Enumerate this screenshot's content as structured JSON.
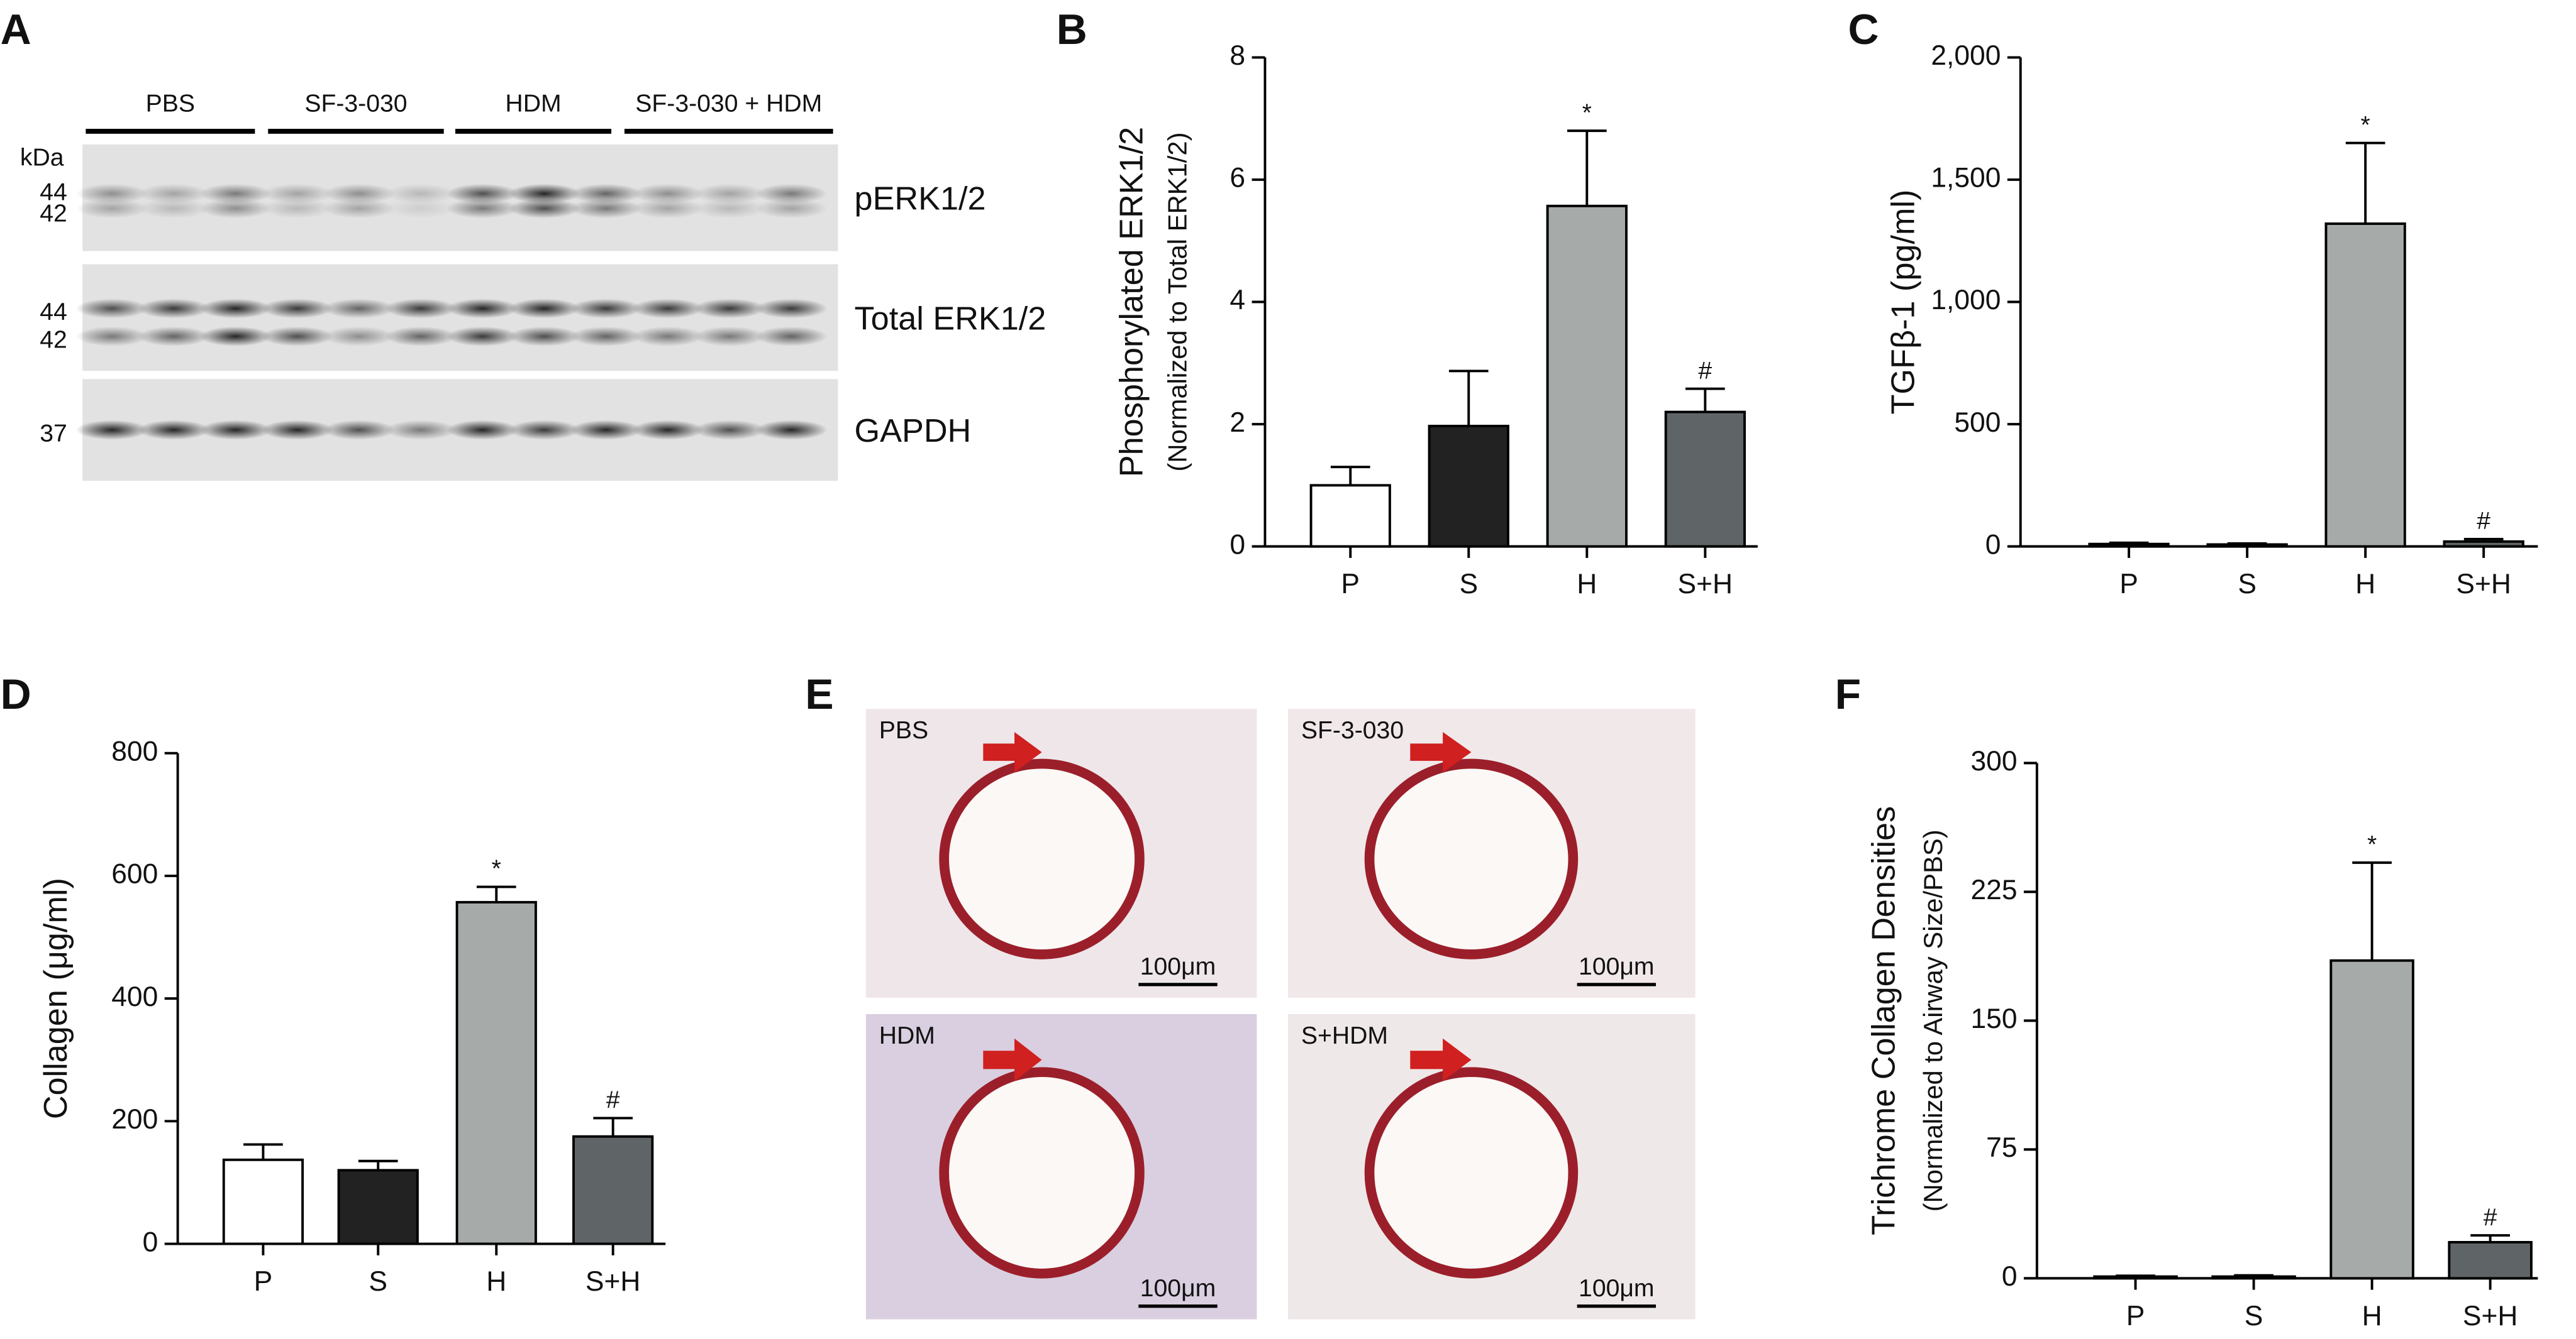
{
  "panel_labels": [
    "A",
    "B",
    "C",
    "D",
    "E",
    "F"
  ],
  "blot": {
    "groups": [
      "PBS",
      "SF-3-030",
      "HDM",
      "SF-3-030 + HDM"
    ],
    "unit": "kDa",
    "markers": [
      "44",
      "42",
      "44",
      "42",
      "37"
    ],
    "rows": [
      "pERK1/2",
      "Total ERK1/2",
      "GAPDH"
    ]
  },
  "histology": {
    "images": [
      {
        "label": "PBS",
        "scale": "100μm"
      },
      {
        "label": "SF-3-030",
        "scale": "100μm"
      },
      {
        "label": "HDM",
        "scale": "100μm"
      },
      {
        "label": "S+HDM",
        "scale": "100μm"
      }
    ]
  },
  "chart_data": [
    {
      "type": "bar",
      "y_label": "Phosphorylated ERK1/2",
      "y_sublabel": "(Normalized to Total  ERK1/2)",
      "categories": [
        "P",
        "S",
        "H",
        "S+H"
      ],
      "values": [
        1.0,
        1.97,
        5.57,
        2.2
      ],
      "errors": [
        0.3,
        0.9,
        1.23,
        0.38
      ],
      "colors": [
        "#ffffff",
        "#222222",
        "#a6aba9",
        "#5f6566"
      ],
      "annotations": [
        null,
        null,
        "*",
        "#"
      ],
      "ylim": [
        0,
        8
      ],
      "yticks": [
        0,
        2,
        4,
        6,
        8
      ]
    },
    {
      "type": "bar",
      "y_label": "TGFβ-1 (pg/ml)",
      "categories": [
        "P",
        "S",
        "H",
        "S+H"
      ],
      "values": [
        10,
        8,
        1320,
        20
      ],
      "errors": [
        5,
        4,
        330,
        10
      ],
      "colors": [
        "#ffffff",
        "#222222",
        "#a6aba9",
        "#5f6566"
      ],
      "annotations": [
        null,
        null,
        "*",
        "#"
      ],
      "ylim": [
        0,
        2000
      ],
      "yticks": [
        0,
        500,
        {
          "value": 1000,
          "label": "1,000"
        },
        {
          "value": 1500,
          "label": "1,500"
        },
        {
          "value": 2000,
          "label": "2,000"
        }
      ]
    },
    {
      "type": "bar",
      "y_label": "Collagen (μg/ml)",
      "categories": [
        "P",
        "S",
        "H",
        "S+H"
      ],
      "values": [
        137,
        120,
        557,
        175
      ],
      "errors": [
        25,
        15,
        25,
        30
      ],
      "colors": [
        "#ffffff",
        "#222222",
        "#a6aba9",
        "#5f6566"
      ],
      "annotations": [
        null,
        null,
        "*",
        "#"
      ],
      "ylim": [
        0,
        800
      ],
      "yticks": [
        0,
        200,
        400,
        600,
        800
      ]
    },
    {
      "type": "bar",
      "y_label": "Trichrome Collagen Densities",
      "y_sublabel": "(Normalized to Airway Size/PBS)",
      "categories": [
        "P",
        "S",
        "H",
        "S+H"
      ],
      "values": [
        1,
        1,
        185,
        21
      ],
      "errors": [
        0.5,
        0.7,
        57,
        4
      ],
      "colors": [
        "#ffffff",
        "#222222",
        "#a6aba9",
        "#5f6566"
      ],
      "annotations": [
        null,
        null,
        "*",
        "#"
      ],
      "ylim": [
        0,
        300
      ],
      "yticks": [
        0,
        75,
        150,
        225,
        300
      ]
    }
  ]
}
